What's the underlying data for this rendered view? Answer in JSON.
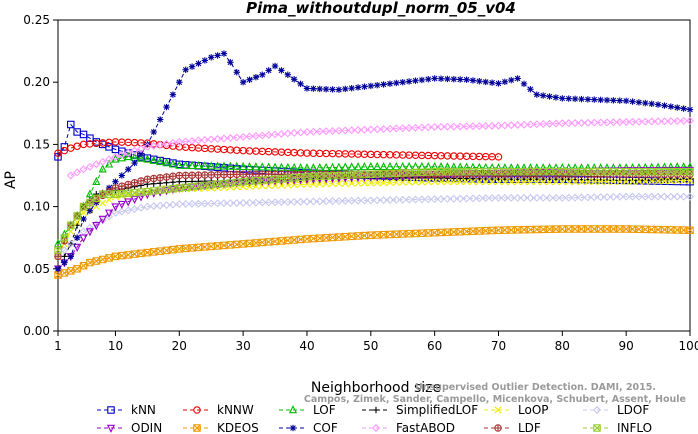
{
  "chart_data": {
    "type": "line",
    "title": "Pima_withoutdupl_norm_05_v04",
    "xlabel": "Neighborhood size",
    "ylabel": "AP",
    "xlim": [
      1,
      100
    ],
    "ylim": [
      0,
      0.25
    ],
    "x_ticks": [
      1,
      10,
      20,
      30,
      40,
      50,
      60,
      70,
      80,
      90,
      100
    ],
    "y_ticks": [
      0.0,
      0.05,
      0.1,
      0.15,
      0.2,
      0.25
    ],
    "y_tick_labels": [
      "0.00",
      "0.05",
      "0.10",
      "0.15",
      "0.20",
      "0.25"
    ],
    "grid": false,
    "legend_position": "bottom",
    "credit_lines": [
      "Campos, Zimek, Sander, Campello, Micenkova, Schubert, Assent, Houle",
      "Unsupervised Outlier Detection. DAMI, 2015."
    ],
    "series": [
      {
        "name": "kNN",
        "color": "#0000cc",
        "marker": "square",
        "points": [
          [
            1,
            0.14
          ],
          [
            2,
            0.148
          ],
          [
            3,
            0.166
          ],
          [
            4,
            0.16
          ],
          [
            5,
            0.158
          ],
          [
            7,
            0.152
          ],
          [
            10,
            0.146
          ],
          [
            14,
            0.14
          ],
          [
            20,
            0.134
          ],
          [
            30,
            0.13
          ],
          [
            40,
            0.127
          ],
          [
            50,
            0.125
          ],
          [
            60,
            0.123
          ],
          [
            70,
            0.122
          ],
          [
            80,
            0.122
          ],
          [
            90,
            0.121
          ],
          [
            100,
            0.12
          ]
        ],
        "x_end": 100
      },
      {
        "name": "kNNW",
        "color": "#ee0000",
        "marker": "circle",
        "points": [
          [
            1,
            0.143
          ],
          [
            3,
            0.147
          ],
          [
            5,
            0.15
          ],
          [
            10,
            0.152
          ],
          [
            15,
            0.151
          ],
          [
            20,
            0.148
          ],
          [
            30,
            0.145
          ],
          [
            40,
            0.143
          ],
          [
            50,
            0.142
          ],
          [
            60,
            0.141
          ],
          [
            70,
            0.14
          ]
        ],
        "x_end": 70
      },
      {
        "name": "LOF",
        "color": "#00bb00",
        "marker": "triangle",
        "points": [
          [
            1,
            0.07
          ],
          [
            3,
            0.085
          ],
          [
            5,
            0.1
          ],
          [
            8,
            0.13
          ],
          [
            10,
            0.138
          ],
          [
            12,
            0.14
          ],
          [
            15,
            0.138
          ],
          [
            20,
            0.133
          ],
          [
            30,
            0.132
          ],
          [
            40,
            0.131
          ],
          [
            50,
            0.132
          ],
          [
            60,
            0.132
          ],
          [
            70,
            0.131
          ],
          [
            80,
            0.131
          ],
          [
            90,
            0.131
          ],
          [
            100,
            0.132
          ]
        ],
        "x_end": 100
      },
      {
        "name": "SimplifiedLOF",
        "color": "#000000",
        "marker": "plus",
        "points": [
          [
            1,
            0.05
          ],
          [
            3,
            0.07
          ],
          [
            5,
            0.1
          ],
          [
            7,
            0.11
          ],
          [
            10,
            0.113
          ],
          [
            15,
            0.118
          ],
          [
            20,
            0.12
          ],
          [
            30,
            0.121
          ],
          [
            40,
            0.122
          ],
          [
            50,
            0.123
          ],
          [
            60,
            0.123
          ],
          [
            70,
            0.122
          ],
          [
            80,
            0.122
          ],
          [
            90,
            0.121
          ],
          [
            100,
            0.122
          ]
        ],
        "x_end": 100
      },
      {
        "name": "LoOP",
        "color": "#eeee00",
        "marker": "x",
        "points": [
          [
            1,
            0.06
          ],
          [
            3,
            0.08
          ],
          [
            5,
            0.095
          ],
          [
            10,
            0.108
          ],
          [
            15,
            0.112
          ],
          [
            20,
            0.114
          ],
          [
            30,
            0.116
          ],
          [
            40,
            0.118
          ],
          [
            50,
            0.119
          ],
          [
            60,
            0.12
          ],
          [
            70,
            0.12
          ],
          [
            80,
            0.12
          ],
          [
            90,
            0.12
          ],
          [
            100,
            0.121
          ]
        ],
        "x_end": 100
      },
      {
        "name": "LDOF",
        "color": "#c8c8f0",
        "marker": "diamond",
        "points": [
          [
            1,
            0.06
          ],
          [
            5,
            0.08
          ],
          [
            10,
            0.095
          ],
          [
            15,
            0.1
          ],
          [
            20,
            0.102
          ],
          [
            30,
            0.103
          ],
          [
            40,
            0.104
          ],
          [
            50,
            0.105
          ],
          [
            60,
            0.106
          ],
          [
            70,
            0.107
          ],
          [
            80,
            0.107
          ],
          [
            90,
            0.108
          ],
          [
            100,
            0.108
          ]
        ],
        "x_end": 100
      },
      {
        "name": "ODIN",
        "color": "#9900cc",
        "marker": "triangle-down",
        "points": [
          [
            1,
            0.05
          ],
          [
            3,
            0.06
          ],
          [
            5,
            0.075
          ],
          [
            8,
            0.09
          ],
          [
            10,
            0.1
          ],
          [
            15,
            0.11
          ],
          [
            20,
            0.115
          ],
          [
            30,
            0.12
          ],
          [
            40,
            0.122
          ],
          [
            50,
            0.124
          ],
          [
            60,
            0.126
          ],
          [
            70,
            0.127
          ],
          [
            80,
            0.128
          ],
          [
            90,
            0.129
          ],
          [
            100,
            0.129
          ]
        ],
        "x_end": 100
      },
      {
        "name": "KDEOS",
        "color": "#ee9900",
        "marker": "square-x",
        "points": [
          [
            1,
            0.045
          ],
          [
            4,
            0.05
          ],
          [
            6,
            0.055
          ],
          [
            10,
            0.06
          ],
          [
            15,
            0.063
          ],
          [
            20,
            0.066
          ],
          [
            25,
            0.068
          ],
          [
            30,
            0.07
          ],
          [
            40,
            0.074
          ],
          [
            50,
            0.077
          ],
          [
            60,
            0.079
          ],
          [
            70,
            0.081
          ],
          [
            80,
            0.082
          ],
          [
            90,
            0.082
          ],
          [
            100,
            0.081
          ]
        ],
        "x_end": 100
      },
      {
        "name": "COF",
        "color": "#000099",
        "marker": "star",
        "points": [
          [
            1,
            0.05
          ],
          [
            3,
            0.06
          ],
          [
            5,
            0.09
          ],
          [
            8,
            0.11
          ],
          [
            10,
            0.12
          ],
          [
            13,
            0.135
          ],
          [
            15,
            0.15
          ],
          [
            17,
            0.17
          ],
          [
            19,
            0.19
          ],
          [
            21,
            0.21
          ],
          [
            23,
            0.215
          ],
          [
            25,
            0.22
          ],
          [
            27,
            0.223
          ],
          [
            28,
            0.216
          ],
          [
            30,
            0.2
          ],
          [
            33,
            0.206
          ],
          [
            35,
            0.213
          ],
          [
            37,
            0.206
          ],
          [
            40,
            0.195
          ],
          [
            45,
            0.194
          ],
          [
            50,
            0.197
          ],
          [
            55,
            0.2
          ],
          [
            60,
            0.203
          ],
          [
            65,
            0.202
          ],
          [
            70,
            0.199
          ],
          [
            73,
            0.203
          ],
          [
            76,
            0.19
          ],
          [
            80,
            0.187
          ],
          [
            85,
            0.186
          ],
          [
            90,
            0.185
          ],
          [
            95,
            0.182
          ],
          [
            100,
            0.178
          ]
        ],
        "x_end": 100
      },
      {
        "name": "FastABOD",
        "color": "#ff99ff",
        "marker": "diamond",
        "points": [
          [
            3,
            0.125
          ],
          [
            5,
            0.13
          ],
          [
            10,
            0.14
          ],
          [
            15,
            0.148
          ],
          [
            20,
            0.152
          ],
          [
            30,
            0.156
          ],
          [
            40,
            0.16
          ],
          [
            50,
            0.162
          ],
          [
            60,
            0.164
          ],
          [
            70,
            0.165
          ],
          [
            80,
            0.167
          ],
          [
            90,
            0.168
          ],
          [
            100,
            0.169
          ]
        ],
        "x_end": 100
      },
      {
        "name": "LDF",
        "color": "#aa3333",
        "marker": "circle-plus",
        "points": [
          [
            1,
            0.06
          ],
          [
            3,
            0.085
          ],
          [
            5,
            0.1
          ],
          [
            10,
            0.115
          ],
          [
            15,
            0.122
          ],
          [
            20,
            0.125
          ],
          [
            30,
            0.126
          ],
          [
            40,
            0.126
          ],
          [
            50,
            0.126
          ],
          [
            60,
            0.126
          ],
          [
            70,
            0.126
          ],
          [
            80,
            0.126
          ],
          [
            90,
            0.126
          ],
          [
            100,
            0.126
          ]
        ],
        "x_end": 100
      },
      {
        "name": "INFLO",
        "color": "#99cc33",
        "marker": "square-x",
        "points": [
          [
            1,
            0.065
          ],
          [
            3,
            0.085
          ],
          [
            5,
            0.1
          ],
          [
            8,
            0.11
          ],
          [
            10,
            0.11
          ],
          [
            15,
            0.112
          ],
          [
            20,
            0.115
          ],
          [
            30,
            0.12
          ],
          [
            40,
            0.124
          ],
          [
            50,
            0.126
          ],
          [
            60,
            0.128
          ],
          [
            70,
            0.128
          ],
          [
            80,
            0.128
          ],
          [
            90,
            0.128
          ],
          [
            100,
            0.128
          ]
        ],
        "x_end": 100
      }
    ]
  }
}
